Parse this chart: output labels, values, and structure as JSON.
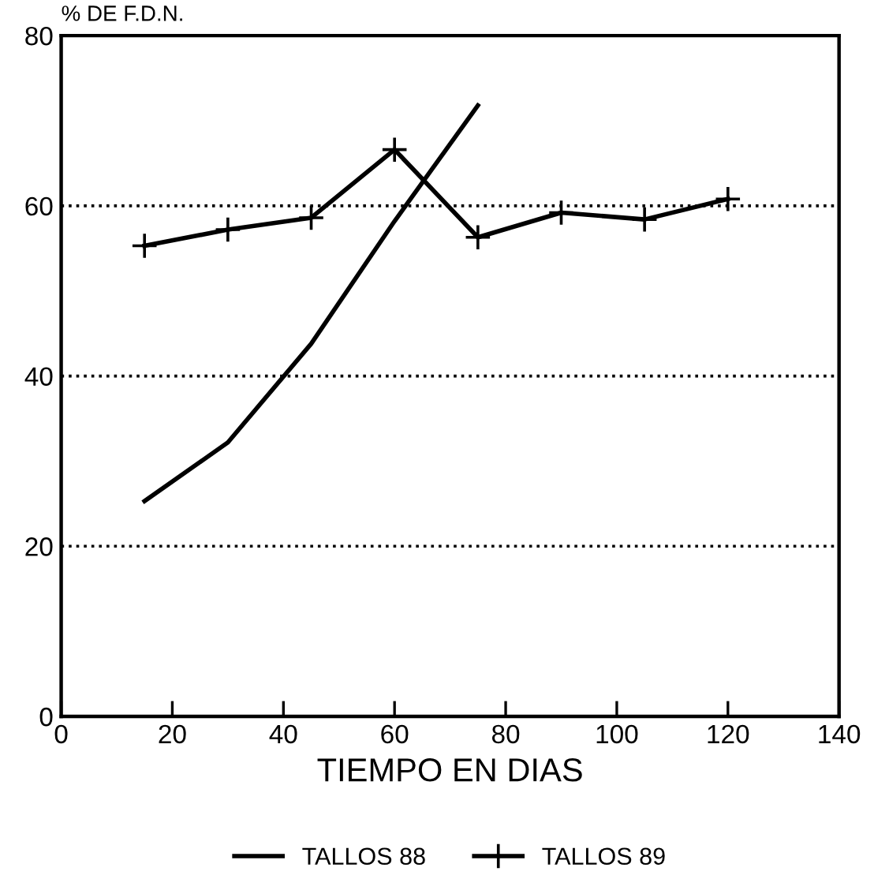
{
  "chart_data": {
    "type": "line",
    "ylabel": "% DE F.D.N.",
    "xlabel": "TIEMPO EN DIAS",
    "xlim": [
      0,
      140
    ],
    "xticks": [
      0,
      20,
      40,
      60,
      80,
      100,
      120,
      140
    ],
    "ylim": [
      0,
      80
    ],
    "yticks": [
      0,
      20,
      40,
      60,
      80
    ],
    "grid": "y",
    "legend": "bottom",
    "series": [
      {
        "name": "TALLOS 88",
        "color": "#000000",
        "marker": "none",
        "x": [
          15,
          30,
          45,
          60,
          75
        ],
        "values": [
          25.3,
          32.2,
          43.8,
          58.2,
          71.8
        ]
      },
      {
        "name": "TALLOS 89",
        "color": "#000000",
        "marker": "cross",
        "x": [
          15,
          30,
          45,
          60,
          75,
          90,
          105,
          120
        ],
        "values": [
          55.3,
          57.2,
          58.6,
          66.6,
          56.3,
          59.2,
          58.4,
          60.8
        ]
      }
    ]
  }
}
